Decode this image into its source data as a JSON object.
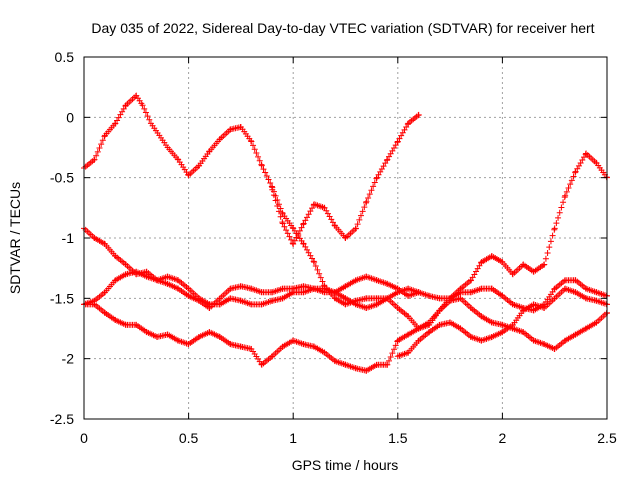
{
  "chart_data": {
    "type": "scatter",
    "title": "Day 035 of 2022, Sidereal Day-to-day VTEC variation (SDTVAR) for receiver hert",
    "xlabel": "GPS time / hours",
    "ylabel": "SDTVAR / TECUs",
    "xlim": [
      0,
      2.5
    ],
    "ylim": [
      -2.5,
      0.5
    ],
    "xticks": [
      0,
      0.5,
      1,
      1.5,
      2,
      2.5
    ],
    "xtick_labels": [
      "0",
      "0.5",
      "1",
      "1.5",
      "2",
      "2.5"
    ],
    "yticks": [
      -2.5,
      -2,
      -1.5,
      -1,
      -0.5,
      0,
      0.5
    ],
    "ytick_labels": [
      "-2.5",
      "-2",
      "-1.5",
      "-1",
      "-0.5",
      "0",
      "0.5"
    ],
    "grid": true,
    "marker": "+",
    "colors": {
      "points": "#ff0000",
      "axes": "#000000",
      "grid": "#a0a0a0"
    },
    "series": [
      {
        "x": [
          0,
          0.05,
          0.1,
          0.15,
          0.2,
          0.25,
          0.28,
          0.32,
          0.36,
          0.4,
          0.45,
          0.5,
          0.55,
          0.6,
          0.65,
          0.7,
          0.75,
          0.8,
          0.85,
          0.9,
          0.95,
          1.0,
          1.05,
          1.1,
          1.15,
          1.2,
          1.25,
          1.3,
          1.35,
          1.4,
          1.45,
          1.5,
          1.55,
          1.6
        ],
        "y": [
          -0.42,
          -0.35,
          -0.15,
          -0.05,
          0.1,
          0.18,
          0.1,
          -0.05,
          -0.15,
          -0.25,
          -0.35,
          -0.48,
          -0.4,
          -0.28,
          -0.18,
          -0.1,
          -0.08,
          -0.2,
          -0.4,
          -0.58,
          -0.8,
          -0.92,
          -1.05,
          -1.2,
          -1.4,
          -1.5,
          -1.55,
          -1.52,
          -1.5,
          -1.5,
          -1.5,
          -1.45,
          -1.42,
          -1.45
        ]
      },
      {
        "x": [
          0.9,
          0.95,
          1.0,
          1.05,
          1.1,
          1.15,
          1.2,
          1.25,
          1.3,
          1.35,
          1.4,
          1.45,
          1.5,
          1.55,
          1.6
        ],
        "y": [
          -0.6,
          -0.88,
          -1.05,
          -0.88,
          -0.72,
          -0.75,
          -0.9,
          -1.0,
          -0.92,
          -0.7,
          -0.5,
          -0.35,
          -0.2,
          -0.05,
          0.02
        ]
      },
      {
        "x": [
          0,
          0.05,
          0.1,
          0.15,
          0.2,
          0.25,
          0.3,
          0.35,
          0.4,
          0.45,
          0.5,
          0.55,
          0.6,
          0.65,
          0.7,
          0.75,
          0.8,
          0.85,
          0.9,
          0.95,
          1.0,
          1.05,
          1.1,
          1.15,
          1.2,
          1.25,
          1.3,
          1.35,
          1.4,
          1.45,
          1.5,
          1.55,
          1.6,
          1.65,
          1.7,
          1.75,
          1.8,
          1.85,
          1.9,
          1.95,
          2.0,
          2.05,
          2.1,
          2.15,
          2.2,
          2.25,
          2.3,
          2.35,
          2.4,
          2.45,
          2.5
        ],
        "y": [
          -0.92,
          -1.0,
          -1.05,
          -1.15,
          -1.22,
          -1.3,
          -1.28,
          -1.35,
          -1.38,
          -1.42,
          -1.48,
          -1.52,
          -1.58,
          -1.5,
          -1.42,
          -1.4,
          -1.42,
          -1.45,
          -1.45,
          -1.42,
          -1.42,
          -1.4,
          -1.42,
          -1.45,
          -1.45,
          -1.5,
          -1.55,
          -1.58,
          -1.55,
          -1.5,
          -1.58,
          -1.65,
          -1.75,
          -1.7,
          -1.6,
          -1.5,
          -1.42,
          -1.35,
          -1.2,
          -1.15,
          -1.2,
          -1.3,
          -1.22,
          -1.28,
          -1.22,
          -0.92,
          -0.65,
          -0.45,
          -0.3,
          -0.38,
          -0.5
        ]
      },
      {
        "x": [
          0,
          0.05,
          0.1,
          0.15,
          0.2,
          0.25,
          0.3,
          0.35,
          0.4,
          0.45,
          0.5,
          0.55,
          0.6,
          0.65,
          0.7,
          0.75,
          0.8,
          0.85,
          0.9,
          0.95,
          1.0,
          1.05,
          1.1,
          1.15,
          1.2,
          1.25,
          1.3,
          1.35,
          1.4,
          1.45,
          1.5,
          1.55,
          1.6,
          1.65,
          1.7,
          1.75,
          1.8,
          1.85,
          1.9,
          1.95,
          2.0,
          2.05,
          2.1,
          2.15,
          2.2,
          2.25,
          2.3,
          2.35,
          2.4,
          2.45,
          2.5
        ],
        "y": [
          -1.55,
          -1.52,
          -1.45,
          -1.35,
          -1.3,
          -1.28,
          -1.32,
          -1.35,
          -1.32,
          -1.35,
          -1.42,
          -1.5,
          -1.55,
          -1.55,
          -1.5,
          -1.52,
          -1.55,
          -1.55,
          -1.52,
          -1.5,
          -1.45,
          -1.45,
          -1.42,
          -1.42,
          -1.45,
          -1.4,
          -1.35,
          -1.32,
          -1.35,
          -1.38,
          -1.42,
          -1.48,
          -1.45,
          -1.48,
          -1.5,
          -1.5,
          -1.45,
          -1.45,
          -1.42,
          -1.42,
          -1.48,
          -1.55,
          -1.58,
          -1.6,
          -1.55,
          -1.42,
          -1.35,
          -1.35,
          -1.42,
          -1.45,
          -1.48
        ]
      },
      {
        "x": [
          0,
          0.05,
          0.1,
          0.15,
          0.2,
          0.25,
          0.3,
          0.35,
          0.4,
          0.45,
          0.5,
          0.55,
          0.6,
          0.65,
          0.7,
          0.75,
          0.8,
          0.85,
          0.9,
          0.95,
          1.0,
          1.05,
          1.1,
          1.15,
          1.2,
          1.25,
          1.3,
          1.35,
          1.4,
          1.45,
          1.5,
          1.55,
          1.6,
          1.65,
          1.7,
          1.75,
          1.8,
          1.85,
          1.9,
          1.95,
          2.0,
          2.05,
          2.1,
          2.15,
          2.2,
          2.25,
          2.3,
          2.35,
          2.4,
          2.45,
          2.5
        ],
        "y": [
          -1.55,
          -1.55,
          -1.62,
          -1.68,
          -1.72,
          -1.72,
          -1.78,
          -1.82,
          -1.8,
          -1.85,
          -1.88,
          -1.82,
          -1.78,
          -1.82,
          -1.88,
          -1.9,
          -1.92,
          -2.05,
          -1.98,
          -1.9,
          -1.85,
          -1.88,
          -1.9,
          -1.95,
          -2.02,
          -2.05,
          -2.08,
          -2.1,
          -2.05,
          -2.05,
          -1.85,
          -1.8,
          -1.75,
          -1.72,
          -1.6,
          -1.52,
          -1.5,
          -1.58,
          -1.65,
          -1.7,
          -1.72,
          -1.75,
          -1.78,
          -1.85,
          -1.88,
          -1.92,
          -1.85,
          -1.8,
          -1.75,
          -1.7,
          -1.62
        ]
      },
      {
        "x": [
          1.5,
          1.55,
          1.6,
          1.65,
          1.7,
          1.75,
          1.8,
          1.85,
          1.9,
          1.95,
          2.0,
          2.05,
          2.1,
          2.15,
          2.2,
          2.25,
          2.3,
          2.35,
          2.4,
          2.45,
          2.5
        ],
        "y": [
          -1.98,
          -1.95,
          -1.85,
          -1.78,
          -1.72,
          -1.7,
          -1.75,
          -1.82,
          -1.85,
          -1.82,
          -1.78,
          -1.72,
          -1.6,
          -1.55,
          -1.58,
          -1.5,
          -1.42,
          -1.45,
          -1.5,
          -1.52,
          -1.55
        ]
      }
    ]
  }
}
